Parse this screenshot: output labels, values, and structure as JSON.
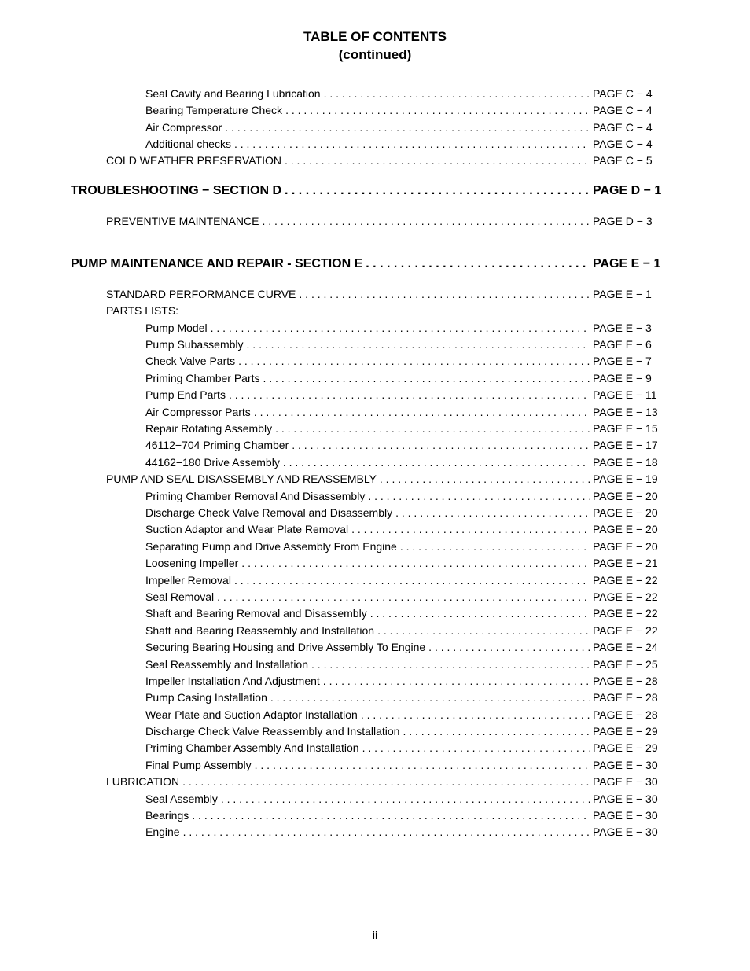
{
  "title_line1": "TABLE OF CONTENTS",
  "title_line2": "(continued)",
  "page_number": "ii",
  "entries": [
    {
      "indent": 2,
      "label": "Seal Cavity and Bearing Lubrication",
      "page": "PAGE C − 4",
      "leader": true,
      "bold": false
    },
    {
      "indent": 2,
      "label": "Bearing Temperature Check",
      "page": "PAGE C − 4",
      "leader": true,
      "bold": false
    },
    {
      "indent": 2,
      "label": "Air Compressor",
      "page": "PAGE C − 4",
      "leader": true,
      "bold": false
    },
    {
      "indent": 2,
      "label": "Additional checks",
      "page": "PAGE C − 4",
      "leader": true,
      "bold": false
    },
    {
      "indent": 1,
      "label": "COLD WEATHER PRESERVATION",
      "page": "PAGE C − 5",
      "leader": true,
      "bold": false
    },
    {
      "indent": 0,
      "label": "TROUBLESHOOTING − SECTION D",
      "page": "PAGE D − 1",
      "leader": true,
      "bold": true,
      "section": true
    },
    {
      "indent": 1,
      "label": "PREVENTIVE MAINTENANCE",
      "page": "PAGE D − 3",
      "leader": true,
      "bold": false,
      "gapAfter": true
    },
    {
      "indent": 0,
      "label": "PUMP MAINTENANCE AND REPAIR - SECTION E",
      "page": "PAGE E − 1",
      "leader": true,
      "bold": true,
      "section": true
    },
    {
      "indent": 1,
      "label": "STANDARD PERFORMANCE CURVE",
      "page": "PAGE E − 1",
      "leader": true,
      "bold": false
    },
    {
      "indent": 1,
      "label": "PARTS LISTS:",
      "page": "",
      "leader": false,
      "bold": false
    },
    {
      "indent": 2,
      "label": "Pump Model",
      "page": "PAGE E − 3",
      "leader": true,
      "bold": false
    },
    {
      "indent": 2,
      "label": "Pump Subassembly",
      "page": "PAGE E − 6",
      "leader": true,
      "bold": false
    },
    {
      "indent": 2,
      "label": "Check Valve Parts",
      "page": "PAGE E − 7",
      "leader": true,
      "bold": false
    },
    {
      "indent": 2,
      "label": "Priming Chamber Parts",
      "page": "PAGE E − 9",
      "leader": true,
      "bold": false
    },
    {
      "indent": 2,
      "label": "Pump End Parts",
      "page": "PAGE E − 11",
      "leader": true,
      "bold": false
    },
    {
      "indent": 2,
      "label": "Air Compressor Parts",
      "page": "PAGE E − 13",
      "leader": true,
      "bold": false
    },
    {
      "indent": 2,
      "label": "Repair Rotating Assembly",
      "page": "PAGE E − 15",
      "leader": true,
      "bold": false
    },
    {
      "indent": 2,
      "label": "46112−704 Priming Chamber",
      "page": "PAGE E − 17",
      "leader": true,
      "bold": false
    },
    {
      "indent": 2,
      "label": "44162−180 Drive Assembly",
      "page": "PAGE E − 18",
      "leader": true,
      "bold": false
    },
    {
      "indent": 1,
      "label": "PUMP AND SEAL DISASSEMBLY AND REASSEMBLY",
      "page": "PAGE E − 19",
      "leader": true,
      "bold": false
    },
    {
      "indent": 2,
      "label": "Priming Chamber Removal And Disassembly",
      "page": "PAGE E − 20",
      "leader": true,
      "bold": false
    },
    {
      "indent": 2,
      "label": "Discharge Check Valve Removal and Disassembly",
      "page": "PAGE E − 20",
      "leader": true,
      "bold": false
    },
    {
      "indent": 2,
      "label": "Suction Adaptor and Wear Plate Removal",
      "page": "PAGE E − 20",
      "leader": true,
      "bold": false
    },
    {
      "indent": 2,
      "label": "Separating Pump and Drive Assembly From Engine",
      "page": "PAGE E − 20",
      "leader": true,
      "bold": false
    },
    {
      "indent": 2,
      "label": "Loosening Impeller",
      "page": "PAGE E − 21",
      "leader": true,
      "bold": false
    },
    {
      "indent": 2,
      "label": "Impeller Removal",
      "page": "PAGE E − 22",
      "leader": true,
      "bold": false
    },
    {
      "indent": 2,
      "label": "Seal Removal",
      "page": "PAGE E − 22",
      "leader": true,
      "bold": false
    },
    {
      "indent": 2,
      "label": "Shaft and Bearing Removal and Disassembly",
      "page": "PAGE E − 22",
      "leader": true,
      "bold": false
    },
    {
      "indent": 2,
      "label": "Shaft and Bearing Reassembly and Installation",
      "page": "PAGE E − 22",
      "leader": true,
      "bold": false
    },
    {
      "indent": 2,
      "label": "Securing Bearing Housing and Drive Assembly To Engine",
      "page": "PAGE E − 24",
      "leader": true,
      "bold": false
    },
    {
      "indent": 2,
      "label": "Seal Reassembly and Installation",
      "page": "PAGE E − 25",
      "leader": true,
      "bold": false
    },
    {
      "indent": 2,
      "label": "Impeller Installation And Adjustment",
      "page": "PAGE E − 28",
      "leader": true,
      "bold": false
    },
    {
      "indent": 2,
      "label": "Pump Casing Installation",
      "page": "PAGE E − 28",
      "leader": true,
      "bold": false
    },
    {
      "indent": 2,
      "label": "Wear Plate and Suction Adaptor Installation",
      "page": "PAGE E − 28",
      "leader": true,
      "bold": false
    },
    {
      "indent": 2,
      "label": "Discharge Check Valve Reassembly and Installation",
      "page": "PAGE E − 29",
      "leader": true,
      "bold": false
    },
    {
      "indent": 2,
      "label": "Priming Chamber Assembly And Installation",
      "page": "PAGE E − 29",
      "leader": true,
      "bold": false
    },
    {
      "indent": 2,
      "label": "Final Pump Assembly",
      "page": "PAGE E − 30",
      "leader": true,
      "bold": false
    },
    {
      "indent": 1,
      "label": "LUBRICATION",
      "page": "PAGE E − 30",
      "leader": true,
      "bold": false
    },
    {
      "indent": 2,
      "label": "Seal Assembly",
      "page": "PAGE E − 30",
      "leader": true,
      "bold": false
    },
    {
      "indent": 2,
      "label": "Bearings",
      "page": "PAGE E − 30",
      "leader": true,
      "bold": false
    },
    {
      "indent": 2,
      "label": "Engine",
      "page": "PAGE E − 30",
      "leader": true,
      "bold": false
    }
  ]
}
